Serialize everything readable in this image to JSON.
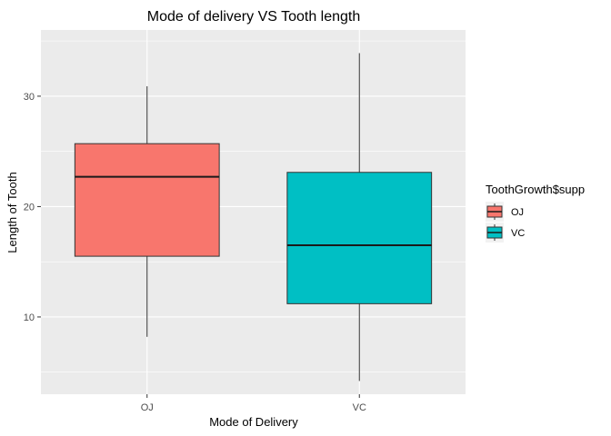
{
  "chart_data": {
    "type": "boxplot",
    "title": "Mode of delivery VS Tooth length",
    "xlabel": "Mode of Delivery",
    "ylabel": "Length of Tooth",
    "ylim": [
      3.0,
      36.0
    ],
    "yticks": [
      10,
      20,
      30
    ],
    "grid": true,
    "legend": {
      "title": "ToothGrowth$supp",
      "placement": "right",
      "entries": [
        {
          "label": "OJ",
          "color": "#F8766D"
        },
        {
          "label": "VC",
          "color": "#00BFC4"
        }
      ]
    },
    "categories": [
      "OJ",
      "VC"
    ],
    "boxes": [
      {
        "category": "OJ",
        "min": 8.2,
        "q1": 15.5,
        "median": 22.7,
        "q3": 25.7,
        "max": 30.9,
        "color": "#F8766D"
      },
      {
        "category": "VC",
        "min": 4.2,
        "q1": 11.2,
        "median": 16.5,
        "q3": 23.1,
        "max": 33.9,
        "color": "#00BFC4"
      }
    ]
  }
}
